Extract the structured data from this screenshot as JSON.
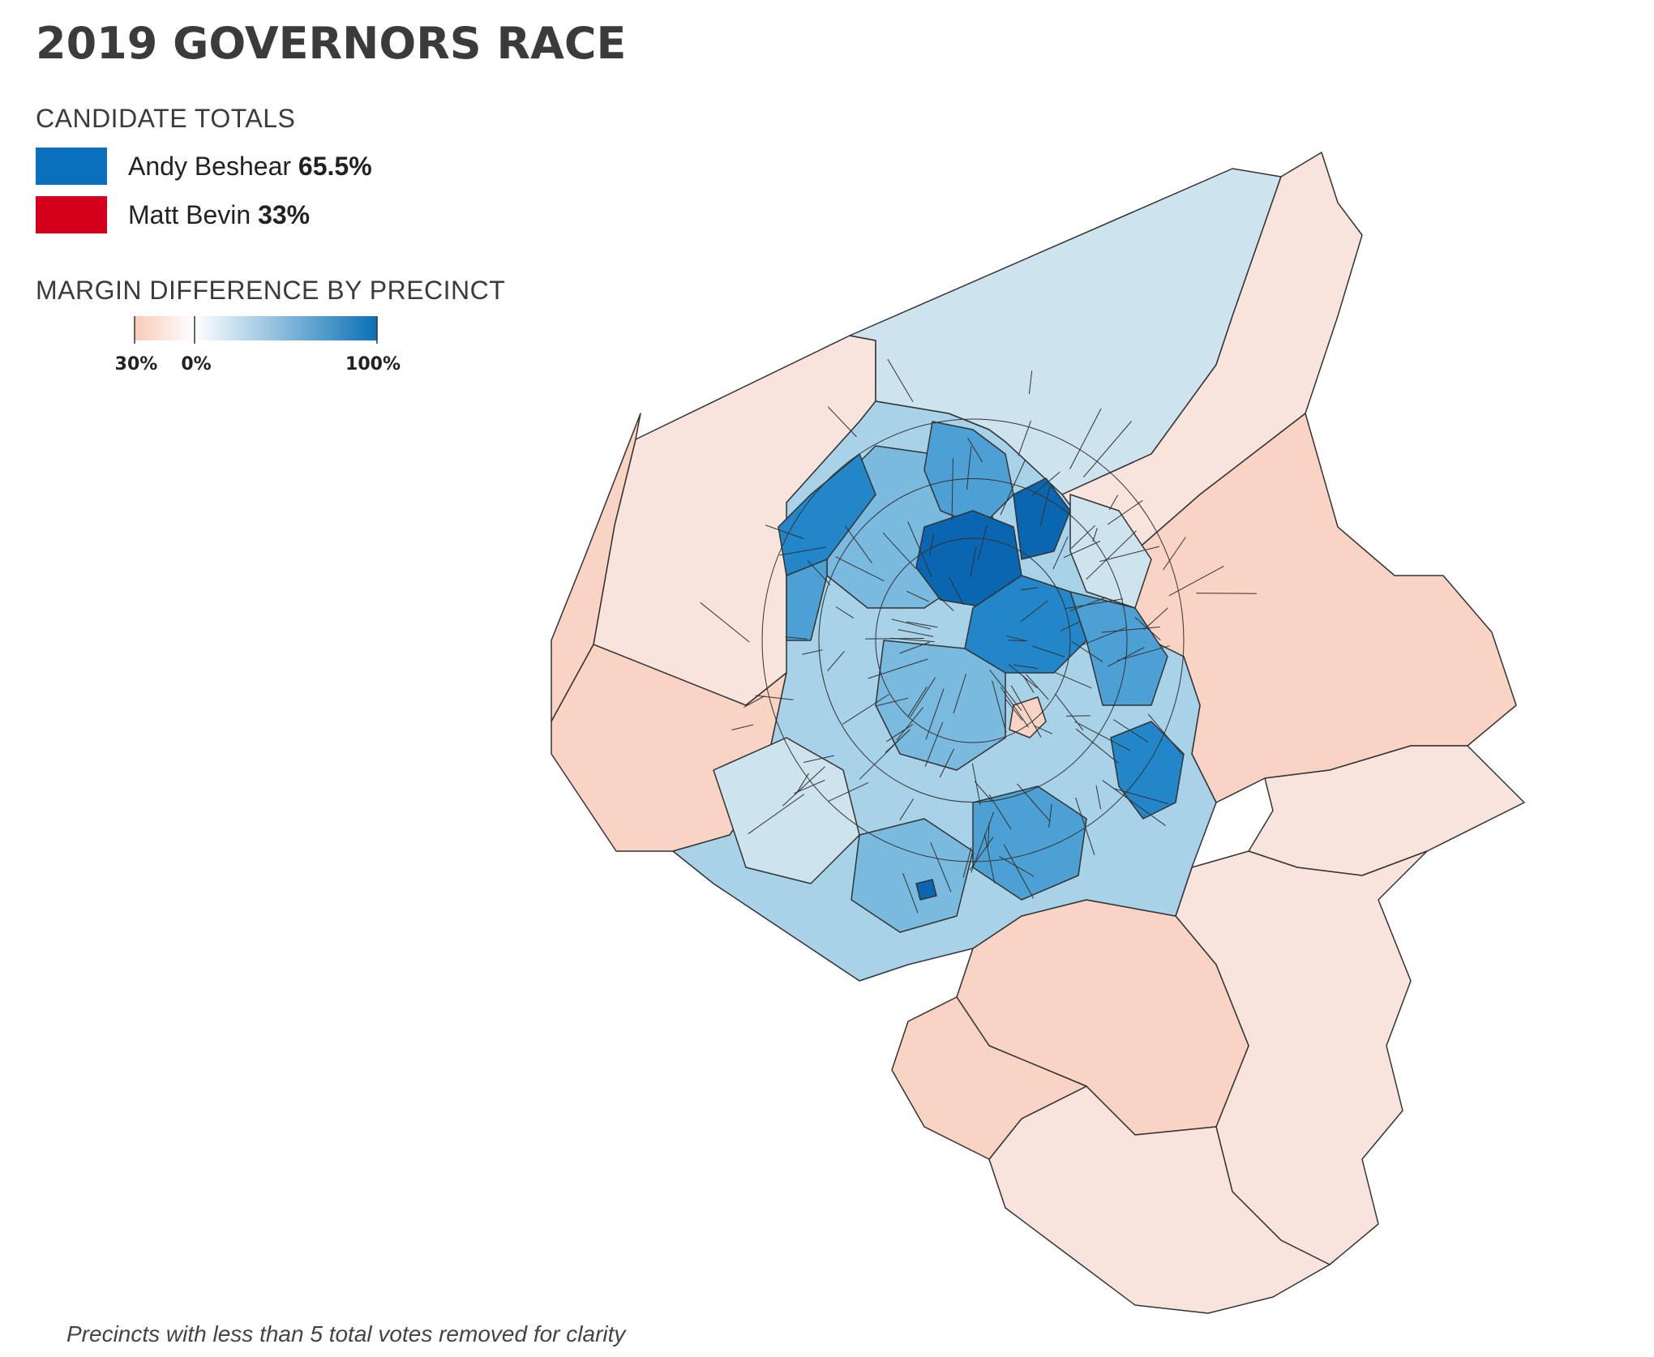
{
  "title": "2019 GOVERNORS RACE",
  "candidate_totals": {
    "label": "CANDIDATE TOTALS",
    "candidates": [
      {
        "name": "Andy Beshear",
        "pct": "65.5%",
        "color": "#0a6fbd"
      },
      {
        "name": "Matt Bevin",
        "pct": "33%",
        "color": "#d5001b"
      }
    ]
  },
  "margin_legend": {
    "label": "MARGIN DIFFERENCE BY PRECINCT",
    "ticks": [
      "30%",
      "0%",
      "100%"
    ],
    "colors": {
      "red_end": "#f9cbb9",
      "neutral": "#ffffff",
      "blue_end": "#0a71b5"
    }
  },
  "footnote": "Precincts with less than 5 total votes removed for clarity",
  "map_colors": {
    "border": "#333333",
    "red_strong": "#f9d3c4",
    "red_light": "#f8e4dc",
    "blue_pale": "#cde3ee",
    "blue_light": "#a8d2e8",
    "blue_mid": "#7bbadf",
    "blue_med": "#4da0d3",
    "blue_dark": "#2386c8",
    "blue_darkest": "#0a66b0"
  }
}
